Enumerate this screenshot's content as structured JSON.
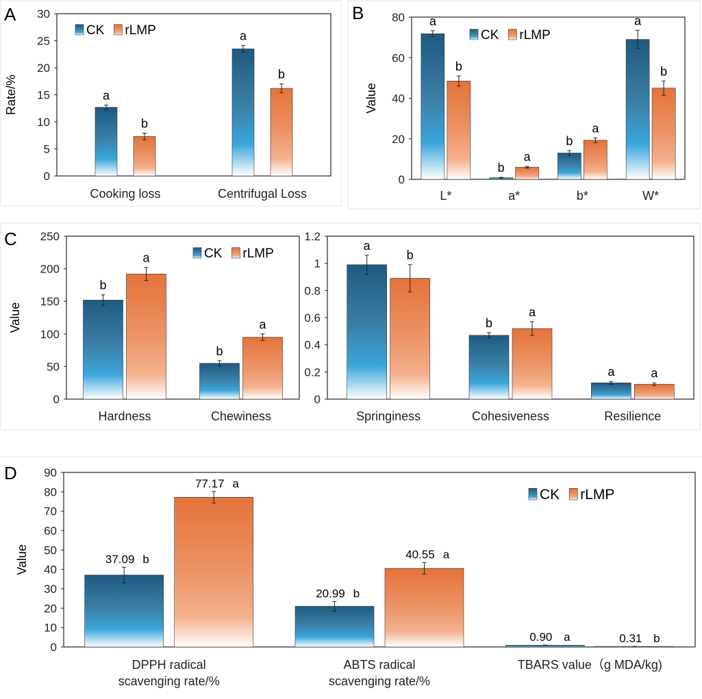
{
  "colors": {
    "CK": "#1f5f86",
    "rLMP": "#e8793a"
  },
  "chart_data": [
    {
      "panel": "A",
      "type": "bar",
      "ylabel": "Rate/%",
      "ylim": [
        0,
        30
      ],
      "yticks": [
        0,
        5,
        10,
        15,
        20,
        25,
        30
      ],
      "categories": [
        "Cooking loss",
        "Centrifugal Loss"
      ],
      "legend": "top-left",
      "series": [
        {
          "name": "CK",
          "values": [
            12.7,
            23.5
          ],
          "errors": [
            0.4,
            0.6
          ],
          "letters": [
            "a",
            "a"
          ]
        },
        {
          "name": "rLMP",
          "values": [
            7.3,
            16.2
          ],
          "errors": [
            0.6,
            0.8
          ],
          "letters": [
            "b",
            "b"
          ]
        }
      ]
    },
    {
      "panel": "B",
      "type": "bar",
      "ylabel": "Value",
      "ylim": [
        0,
        80
      ],
      "yticks": [
        0,
        20,
        40,
        60,
        80
      ],
      "categories": [
        "L*",
        "a*",
        "b*",
        "W*"
      ],
      "legend": "top-center",
      "series": [
        {
          "name": "CK",
          "values": [
            71.8,
            0.8,
            13.0,
            69.0
          ],
          "errors": [
            1.5,
            0.2,
            1.2,
            4.5
          ],
          "letters": [
            "a",
            "b",
            "b",
            "a"
          ]
        },
        {
          "name": "rLMP",
          "values": [
            48.5,
            6.0,
            19.3,
            45.0
          ],
          "errors": [
            2.5,
            0.4,
            1.2,
            3.5
          ],
          "letters": [
            "b",
            "a",
            "a",
            "b"
          ]
        }
      ]
    },
    {
      "panel": "C",
      "type": "bar",
      "ylabel": "Value",
      "ylim": [
        0,
        250
      ],
      "yticks": [
        0,
        50,
        100,
        150,
        200,
        250
      ],
      "categories": [
        "Hardness",
        "Chewiness"
      ],
      "legend": "top-right",
      "series": [
        {
          "name": "CK",
          "values": [
            152,
            55
          ],
          "errors": [
            8,
            4
          ],
          "letters": [
            "b",
            "b"
          ]
        },
        {
          "name": "rLMP",
          "values": [
            192,
            95
          ],
          "errors": [
            10,
            5
          ],
          "letters": [
            "a",
            "a"
          ]
        }
      ]
    },
    {
      "panel": "",
      "type": "bar",
      "ylabel": "",
      "ylim": [
        0,
        1.2
      ],
      "yticks": [
        "0",
        "0.2",
        "0.4",
        "0.6",
        "0.8",
        "1",
        "1.2"
      ],
      "categories": [
        "Springiness",
        "Cohesiveness",
        "Resilience"
      ],
      "series": [
        {
          "name": "CK",
          "values": [
            0.99,
            0.47,
            0.12
          ],
          "errors": [
            0.07,
            0.02,
            0.01
          ],
          "letters": [
            "a",
            "b",
            "a"
          ]
        },
        {
          "name": "rLMP",
          "values": [
            0.89,
            0.52,
            0.11
          ],
          "errors": [
            0.1,
            0.05,
            0.01
          ],
          "letters": [
            "b",
            "a",
            "a"
          ]
        }
      ]
    },
    {
      "panel": "D",
      "type": "bar",
      "ylabel": "Value",
      "ylim": [
        0,
        90
      ],
      "yticks": [
        0,
        10,
        20,
        30,
        40,
        50,
        60,
        70,
        80,
        90
      ],
      "categories": [
        [
          "DPPH radical",
          "scavenging rate/%"
        ],
        [
          "ABTS radical",
          "scavenging rate/%"
        ],
        [
          "TBARS value（g MDA/kg)"
        ]
      ],
      "legend": "top-right",
      "series": [
        {
          "name": "CK",
          "values": [
            37.09,
            20.99,
            0.9
          ],
          "errors": [
            4,
            2.5,
            0.1
          ],
          "letters": [
            "b",
            "b",
            "a"
          ],
          "labels": [
            "37.09",
            "20.99",
            "0.90"
          ]
        },
        {
          "name": "rLMP",
          "values": [
            77.17,
            40.55,
            0.31
          ],
          "errors": [
            3,
            3,
            0.05
          ],
          "letters": [
            "a",
            "a",
            "b"
          ],
          "labels": [
            "77.17",
            "40.55",
            "0.31"
          ]
        }
      ]
    }
  ]
}
